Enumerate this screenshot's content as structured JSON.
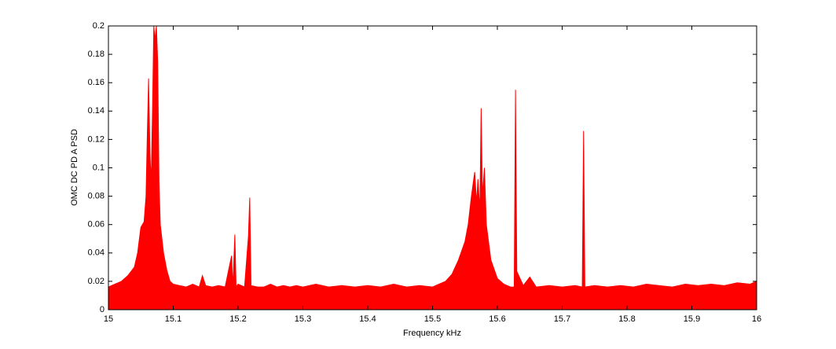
{
  "chart_data": {
    "type": "area",
    "xlabel": "Frequency kHz",
    "ylabel": "OMC DC PD A PSD",
    "x": [
      15.0,
      15.01,
      15.02,
      15.03,
      15.04,
      15.045,
      15.05,
      15.055,
      15.058,
      15.06,
      15.062,
      15.064,
      15.066,
      15.068,
      15.07,
      15.072,
      15.074,
      15.076,
      15.078,
      15.08,
      15.085,
      15.09,
      15.095,
      15.1,
      15.11,
      15.12,
      15.13,
      15.14,
      15.145,
      15.15,
      15.16,
      15.17,
      15.18,
      15.19,
      15.192,
      15.195,
      15.197,
      15.2,
      15.21,
      15.216,
      15.218,
      15.22,
      15.23,
      15.24,
      15.25,
      15.26,
      15.27,
      15.28,
      15.29,
      15.3,
      15.32,
      15.34,
      15.36,
      15.38,
      15.4,
      15.42,
      15.44,
      15.46,
      15.48,
      15.5,
      15.51,
      15.52,
      15.53,
      15.54,
      15.55,
      15.555,
      15.56,
      15.565,
      15.568,
      15.57,
      15.573,
      15.575,
      15.577,
      15.58,
      15.583,
      15.59,
      15.6,
      15.61,
      15.62,
      15.626,
      15.628,
      15.63,
      15.64,
      15.65,
      15.66,
      15.68,
      15.7,
      15.72,
      15.731,
      15.733,
      15.735,
      15.75,
      15.77,
      15.79,
      15.81,
      15.83,
      15.85,
      15.87,
      15.89,
      15.91,
      15.93,
      15.95,
      15.97,
      15.99,
      16.0
    ],
    "series": [
      {
        "name": "OMC DC PD A PSD",
        "color": "#ff0000",
        "values": [
          0.016,
          0.018,
          0.02,
          0.024,
          0.03,
          0.04,
          0.058,
          0.062,
          0.08,
          0.124,
          0.163,
          0.11,
          0.09,
          0.14,
          0.2,
          0.19,
          0.2,
          0.175,
          0.09,
          0.06,
          0.04,
          0.028,
          0.02,
          0.018,
          0.017,
          0.016,
          0.018,
          0.016,
          0.024,
          0.017,
          0.016,
          0.017,
          0.016,
          0.038,
          0.016,
          0.053,
          0.016,
          0.018,
          0.016,
          0.052,
          0.079,
          0.017,
          0.016,
          0.016,
          0.018,
          0.016,
          0.017,
          0.016,
          0.017,
          0.016,
          0.018,
          0.016,
          0.017,
          0.016,
          0.017,
          0.016,
          0.018,
          0.016,
          0.017,
          0.016,
          0.018,
          0.02,
          0.025,
          0.035,
          0.048,
          0.06,
          0.08,
          0.097,
          0.075,
          0.092,
          0.07,
          0.142,
          0.08,
          0.1,
          0.06,
          0.035,
          0.022,
          0.018,
          0.016,
          0.016,
          0.155,
          0.027,
          0.017,
          0.023,
          0.016,
          0.017,
          0.016,
          0.017,
          0.016,
          0.126,
          0.016,
          0.017,
          0.016,
          0.017,
          0.016,
          0.018,
          0.017,
          0.016,
          0.018,
          0.017,
          0.018,
          0.017,
          0.019,
          0.018,
          0.02
        ]
      }
    ],
    "xlim": [
      15,
      16
    ],
    "xticks": [
      15,
      15.1,
      15.2,
      15.3,
      15.4,
      15.5,
      15.6,
      15.7,
      15.8,
      15.9,
      16
    ],
    "ylim": [
      0,
      0.2
    ],
    "yticks": [
      0,
      0.02,
      0.04,
      0.06,
      0.08,
      0.1,
      0.12,
      0.14,
      0.16,
      0.18,
      0.2
    ]
  }
}
